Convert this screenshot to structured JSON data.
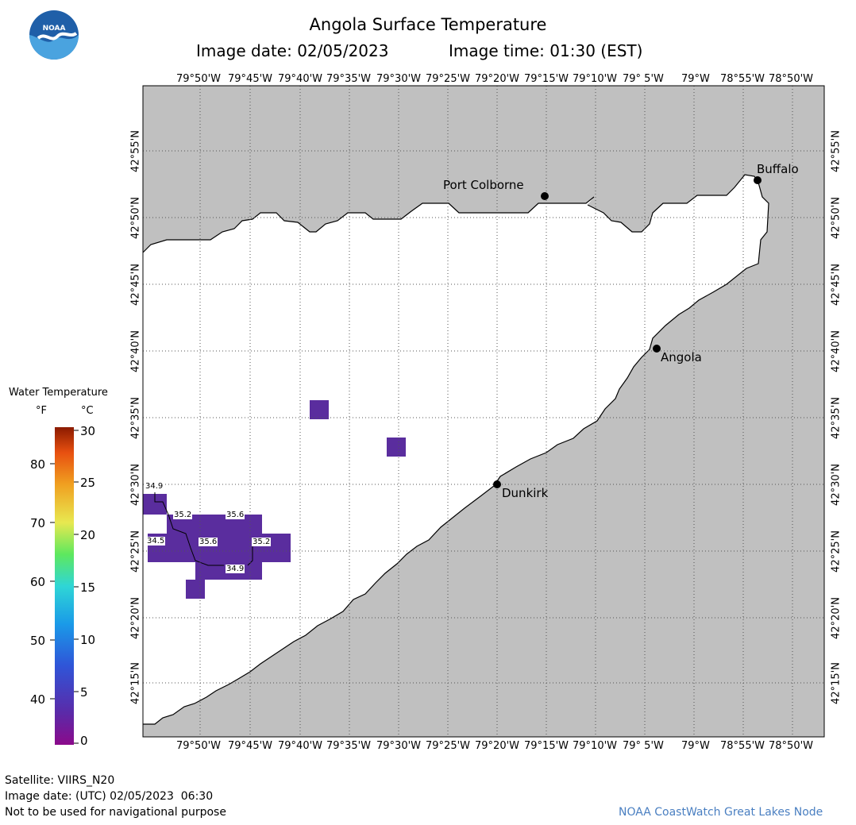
{
  "header": {
    "title": "Angola Surface Temperature",
    "image_date": "Image date: 02/05/2023",
    "image_time": "Image time: 01:30 (EST)",
    "logo_text": "NOAA"
  },
  "map": {
    "lon_labels": [
      "79°50'W",
      "79°45'W",
      "79°40'W",
      "79°35'W",
      "79°30'W",
      "79°25'W",
      "79°20'W",
      "79°15'W",
      "79°10'W",
      "79° 5'W",
      "79°W",
      "78°55'W",
      "78°50'W"
    ],
    "lat_labels": [
      "42°55'N",
      "42°50'N",
      "42°45'N",
      "42°40'N",
      "42°35'N",
      "42°30'N",
      "42°25'N",
      "42°20'N",
      "42°15'N"
    ],
    "cities": [
      "Port Colborne",
      "Buffalo",
      "Angola",
      "Dunkirk"
    ],
    "contour_labels": [
      "34.9",
      "35.2",
      "35.6",
      "34.5",
      "35.6",
      "35.2",
      "34.9"
    ],
    "colors": {
      "land": "#c0c0c0",
      "water": "#ffffff",
      "cold_water": "#5a2d9e",
      "grid": "#555555"
    }
  },
  "legend": {
    "title": "Water Temperature",
    "unit_f": "°F",
    "unit_c": "°C",
    "f_ticks": [
      "80",
      "70",
      "60",
      "50",
      "40"
    ],
    "c_ticks": [
      "30",
      "25",
      "20",
      "15",
      "10",
      "5",
      "0"
    ]
  },
  "footer": {
    "satellite": "Satellite: VIIRS_N20",
    "utc_date": "Image date: (UTC) 02/05/2023  06:30",
    "disclaimer": "Not to be used for navigational purpose",
    "credit": "NOAA CoastWatch Great Lakes Node"
  }
}
